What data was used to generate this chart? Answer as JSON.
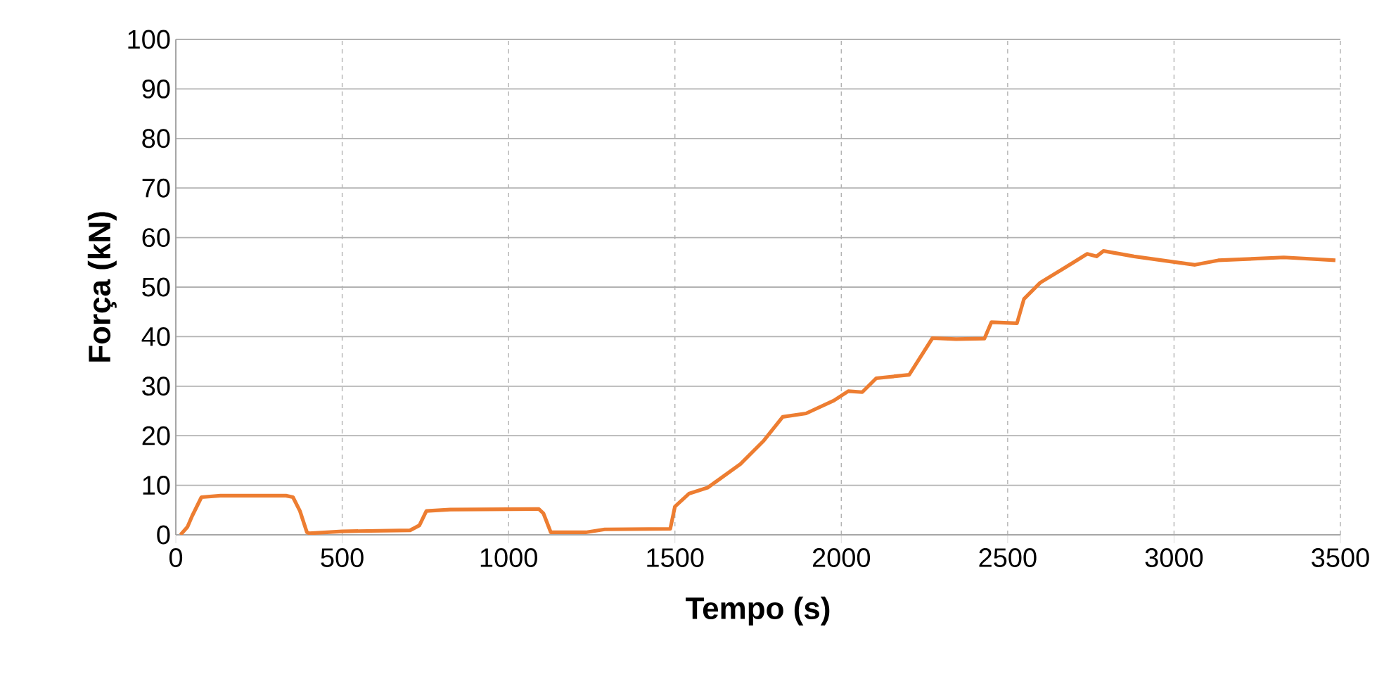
{
  "chart_data": {
    "type": "line",
    "xlabel": "Tempo (s)",
    "ylabel": "Força (kN)",
    "xlim": [
      0,
      3500
    ],
    "ylim": [
      0,
      100
    ],
    "xticks": [
      0,
      500,
      1000,
      1500,
      2000,
      2500,
      3000,
      3500
    ],
    "yticks": [
      0,
      10,
      20,
      30,
      40,
      50,
      60,
      70,
      80,
      90,
      100
    ],
    "grid": true,
    "marker": "none",
    "line_style": "solid",
    "series": [
      {
        "color": "#ed7d31",
        "x": [
          14,
          35,
          49,
          77,
          134,
          331,
          352,
          373,
          394,
          401,
          500,
          704,
          732,
          753,
          824,
          1091,
          1105,
          1127,
          1232,
          1289,
          1486,
          1500,
          1542,
          1598,
          1697,
          1767,
          1824,
          1894,
          1978,
          2021,
          2063,
          2105,
          2204,
          2274,
          2345,
          2430,
          2451,
          2528,
          2549,
          2598,
          2669,
          2739,
          2767,
          2788,
          2880,
          2986,
          3063,
          3133,
          3330,
          3485
        ],
        "values": [
          0,
          1.6,
          3.8,
          7.6,
          7.9,
          7.9,
          7.6,
          4.8,
          0.5,
          0.3,
          0.7,
          0.9,
          1.9,
          4.8,
          5.1,
          5.2,
          4.3,
          0.5,
          0.5,
          1.1,
          1.2,
          5.7,
          8.3,
          9.5,
          14.3,
          19.0,
          23.8,
          24.5,
          27.1,
          29.0,
          28.8,
          31.6,
          32.3,
          39.7,
          39.5,
          39.6,
          42.9,
          42.7,
          47.6,
          50.9,
          53.8,
          56.7,
          56.2,
          57.3,
          56.2,
          55.2,
          54.5,
          55.4,
          56.0,
          55.4
        ]
      }
    ]
  }
}
